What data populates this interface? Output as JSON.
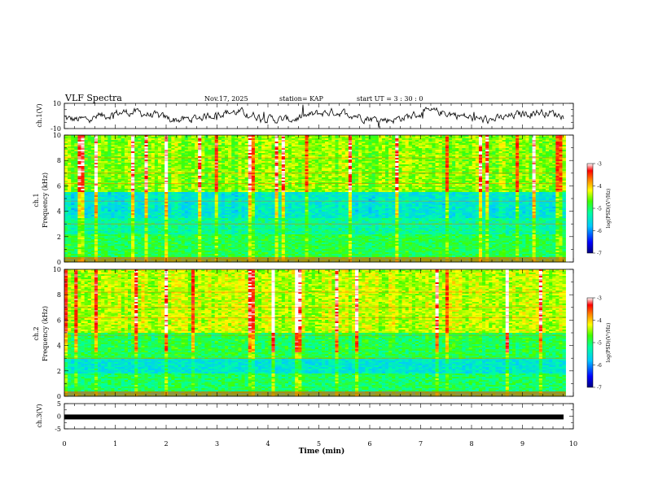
{
  "header": {
    "title": "VLF Spectra",
    "date": "Nov.17, 2025",
    "station": "station= KAP",
    "start": "start  UT =   3  : 30 : 0"
  },
  "chart_data": [
    {
      "type": "line",
      "name": "ch1-waveform",
      "ylabel": "ch.1(V)",
      "ylim": [
        -10,
        10
      ],
      "yticks": [
        "10",
        "-10"
      ],
      "xlim": [
        0,
        10
      ],
      "description_values": "noisy signal oscillating around 0 V with amplitude about 4 V"
    },
    {
      "type": "heatmap",
      "name": "ch1-spectrogram",
      "ylabel": "ch.1\nFrequency (kHz)",
      "ylim": [
        0,
        10
      ],
      "yticks": [
        "0",
        "2",
        "4",
        "6",
        "8",
        "10"
      ],
      "xlim": [
        0,
        9.85
      ],
      "colorbar": {
        "label": "log(PSD)(V²/Hz)",
        "range": [
          -7,
          -3
        ],
        "ticks": [
          "-3",
          "-4",
          "-5",
          "-6",
          "-7"
        ]
      }
    },
    {
      "type": "heatmap",
      "name": "ch2-spectrogram",
      "ylabel": "ch.2\nFrequency (kHz)",
      "ylim": [
        0,
        10
      ],
      "yticks": [
        "0",
        "2",
        "4",
        "6",
        "8",
        "10"
      ],
      "xlim": [
        0,
        9.85
      ],
      "colorbar": {
        "label": "log(PSD)(V²/Hz)",
        "range": [
          -7,
          -3
        ],
        "ticks": [
          "-3",
          "-4",
          "-5",
          "-6",
          "-7"
        ]
      }
    },
    {
      "type": "line",
      "name": "ch3-signal",
      "ylabel": "ch.3(V)",
      "ylim": [
        -5,
        5
      ],
      "yticks": [
        "5",
        "0",
        "-5"
      ],
      "xlim": [
        0,
        10
      ],
      "level": -0.3
    }
  ],
  "xaxis": {
    "label": "Time  (min)",
    "ticks": [
      "0",
      "1",
      "2",
      "3",
      "4",
      "5",
      "6",
      "7",
      "8",
      "9",
      "10"
    ],
    "range": [
      0,
      10
    ]
  },
  "colors": {
    "cmap": [
      "#000080",
      "#0000ff",
      "#00c8ff",
      "#00ffa0",
      "#40ff00",
      "#ffff00",
      "#ff8000",
      "#ff0000",
      "#ffffff"
    ]
  }
}
